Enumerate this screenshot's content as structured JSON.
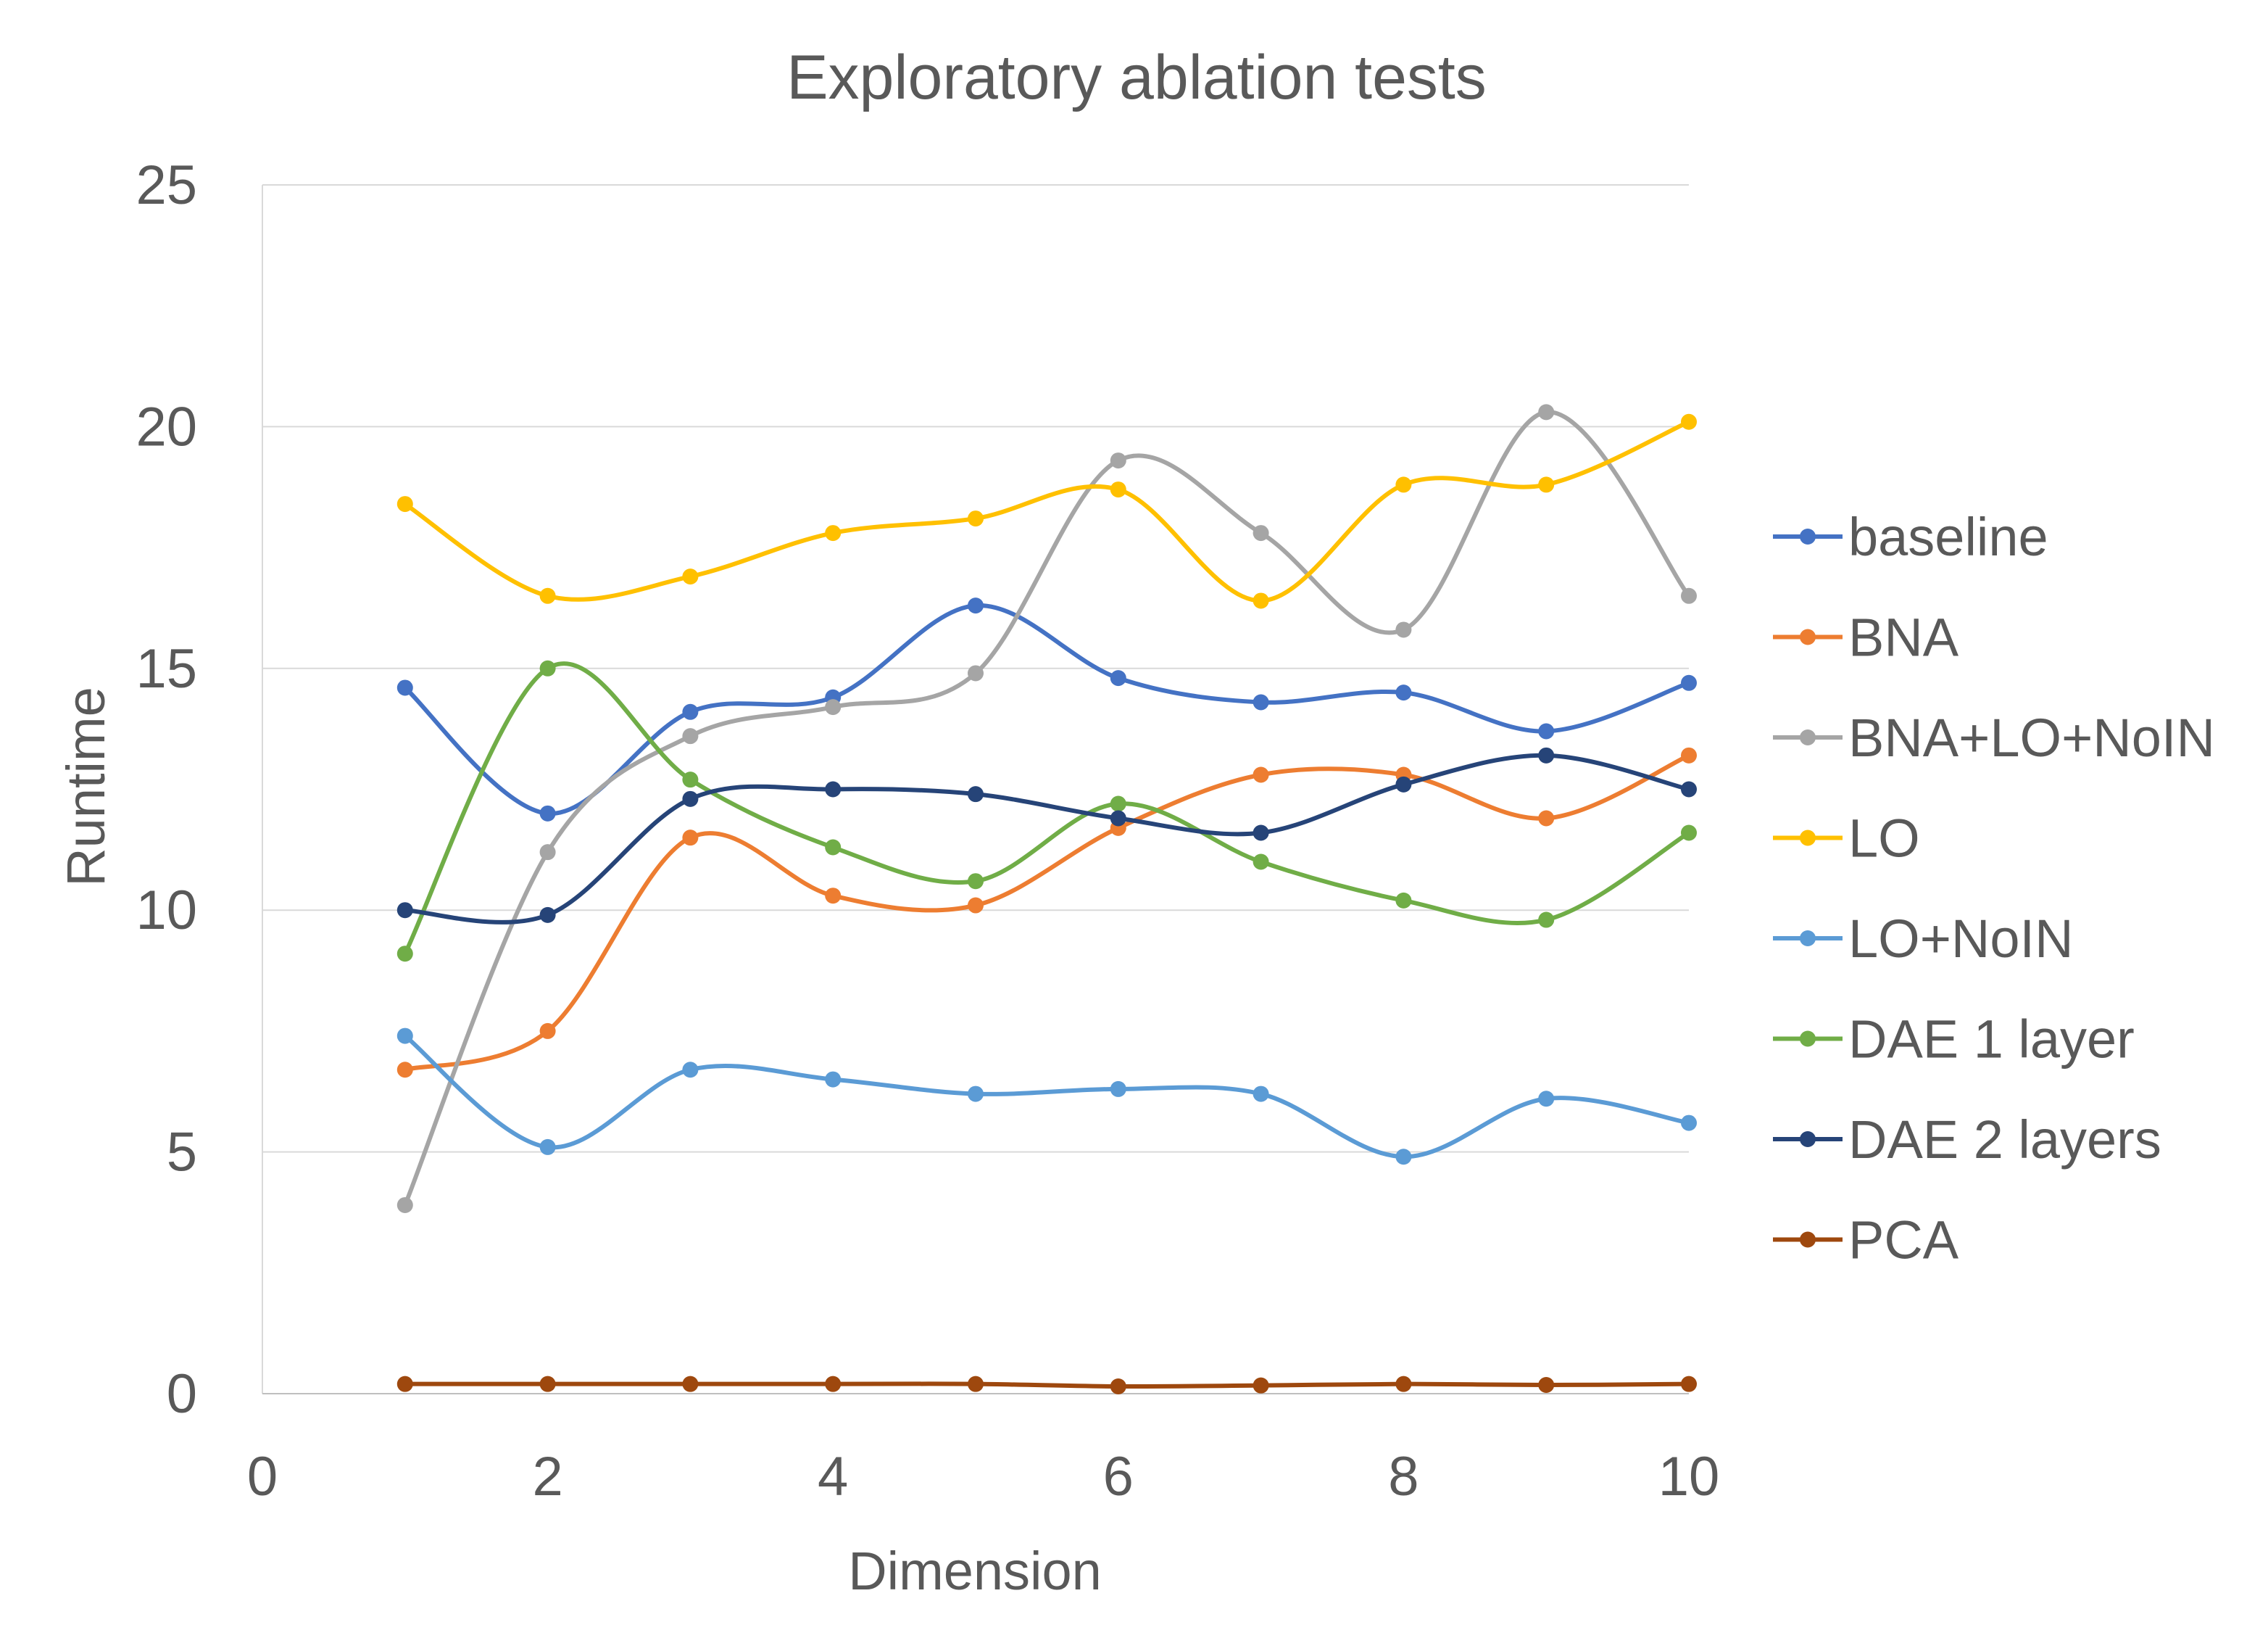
{
  "chart_data": {
    "type": "line",
    "title": "Exploratory ablation tests",
    "xlabel": "Dimension",
    "ylabel": "Runtime",
    "xlim": [
      0,
      10
    ],
    "ylim": [
      0,
      25
    ],
    "xticks": [
      0,
      2,
      4,
      6,
      8,
      10
    ],
    "yticks": [
      0,
      5,
      10,
      15,
      20,
      25
    ],
    "grid": "horizontal",
    "legend_position": "right",
    "smooth": true,
    "x": [
      1,
      2,
      3,
      4,
      5,
      6,
      7,
      8,
      9,
      10
    ],
    "series": [
      {
        "name": "baseline",
        "color": "#4472C4",
        "values": [
          14.6,
          12.0,
          14.1,
          14.4,
          16.3,
          14.8,
          14.3,
          14.5,
          13.7,
          14.7
        ]
      },
      {
        "name": "BNA",
        "color": "#ED7D31",
        "values": [
          6.7,
          7.5,
          11.5,
          10.3,
          10.1,
          11.7,
          12.8,
          12.8,
          11.9,
          13.2
        ]
      },
      {
        "name": "BNA+LO+NoIN",
        "color": "#A5A5A5",
        "values": [
          3.9,
          11.2,
          13.6,
          14.2,
          14.9,
          19.3,
          17.8,
          15.8,
          20.3,
          16.5
        ]
      },
      {
        "name": "LO",
        "color": "#FFC000",
        "values": [
          18.4,
          16.5,
          16.9,
          17.8,
          18.1,
          18.7,
          16.4,
          18.8,
          18.8,
          20.1
        ]
      },
      {
        "name": "LO+NoIN",
        "color": "#5B9BD5",
        "values": [
          7.4,
          5.1,
          6.7,
          6.5,
          6.2,
          6.3,
          6.2,
          4.9,
          6.1,
          5.6
        ]
      },
      {
        "name": "DAE 1 layer",
        "color": "#70AD47",
        "values": [
          9.1,
          15.0,
          12.7,
          11.3,
          10.6,
          12.2,
          11.0,
          10.2,
          9.8,
          11.6
        ]
      },
      {
        "name": "DAE 2 layers",
        "color": "#264478",
        "values": [
          10.0,
          9.9,
          12.3,
          12.5,
          12.4,
          11.9,
          11.6,
          12.6,
          13.2,
          12.5
        ]
      },
      {
        "name": "PCA",
        "color": "#9E480E",
        "values": [
          0.2,
          0.2,
          0.2,
          0.2,
          0.2,
          0.15,
          0.17,
          0.2,
          0.18,
          0.2
        ]
      }
    ]
  }
}
